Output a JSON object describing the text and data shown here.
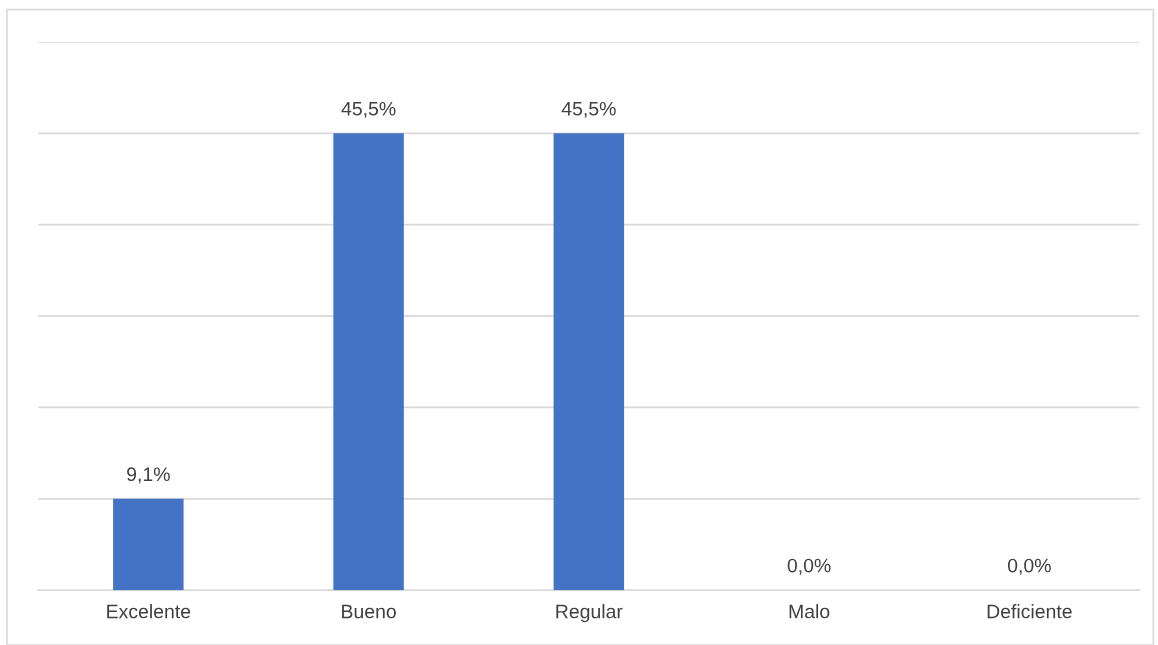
{
  "chart_data": {
    "type": "bar",
    "categories": [
      "Excelente",
      "Bueno",
      "Regular",
      "Malo",
      "Deficiente"
    ],
    "values": [
      9.1,
      45.5,
      45.5,
      0.0,
      0.0
    ],
    "value_labels": [
      "9,1%",
      "45,5%",
      "45,5%",
      "0,0%",
      "0,0%"
    ],
    "color": "#4472c4",
    "ylim": [
      0,
      54.6
    ],
    "yticks": [
      {
        "value": 9.1,
        "label": null
      },
      {
        "value": 18.2,
        "label": null
      },
      {
        "value": 27.3,
        "label": null
      },
      {
        "value": 36.4,
        "label": null
      },
      {
        "value": 45.5,
        "label": null
      },
      {
        "value": 54.6,
        "label": null
      }
    ],
    "tick_labels": "x",
    "grid": "y",
    "legend": false
  }
}
